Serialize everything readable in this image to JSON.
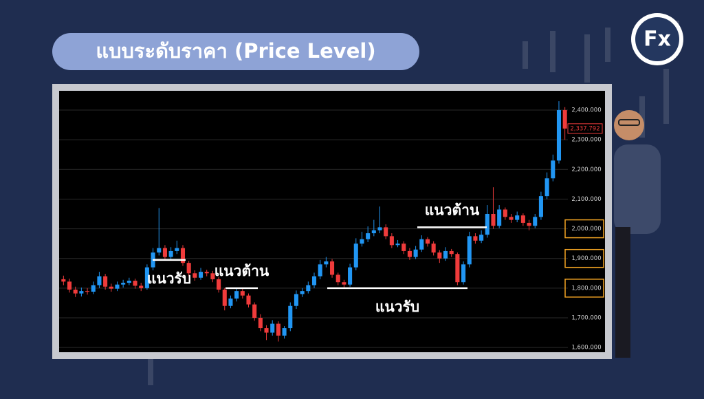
{
  "header": {
    "title": "แบบระดับราคา (Price Level)",
    "logo": "Fx"
  },
  "chart_data": {
    "type": "candlestick",
    "open": [
      1830,
      1822,
      1795,
      1782,
      1790,
      1788,
      1810,
      1840,
      1805,
      1798,
      1812,
      1818,
      1825,
      1808,
      1800,
      1870,
      1920,
      1935,
      1905,
      1925,
      1935,
      1885,
      1850,
      1835,
      1855,
      1850,
      1830,
      1795,
      1740,
      1765,
      1790,
      1775,
      1745,
      1700,
      1665,
      1650,
      1680,
      1640,
      1665,
      1740,
      1780,
      1790,
      1810,
      1840,
      1880,
      1890,
      1845,
      1820,
      1812,
      1870,
      1950,
      1965,
      1985,
      1995,
      2005,
      1975,
      1945,
      1950,
      1925,
      1905,
      1930,
      1965,
      1950,
      1920,
      1900,
      1925,
      1915,
      1820,
      1880,
      1975,
      1960,
      1980,
      2050,
      2010,
      2065,
      2040,
      2030,
      2045,
      2020,
      2010,
      2040,
      2110,
      2170,
      2230,
      2400
    ],
    "high": [
      1842,
      1832,
      1805,
      1802,
      1800,
      1822,
      1855,
      1848,
      1815,
      1822,
      1828,
      1835,
      1832,
      1818,
      1880,
      1935,
      2070,
      1945,
      1938,
      1960,
      1945,
      1892,
      1860,
      1868,
      1862,
      1858,
      1838,
      1800,
      1775,
      1802,
      1798,
      1782,
      1752,
      1712,
      1675,
      1692,
      1688,
      1672,
      1752,
      1792,
      1800,
      1822,
      1852,
      1895,
      1905,
      1898,
      1852,
      1828,
      1882,
      1968,
      1990,
      2008,
      2030,
      2075,
      2015,
      1985,
      1962,
      1958,
      1935,
      1942,
      1978,
      1972,
      1958,
      1928,
      1938,
      1932,
      1920,
      1890,
      1990,
      1985,
      1995,
      2080,
      2140,
      2080,
      2072,
      2050,
      2058,
      2052,
      2030,
      2050,
      2125,
      2190,
      2250,
      2430,
      2410
    ],
    "low": [
      1810,
      1785,
      1770,
      1772,
      1778,
      1780,
      1800,
      1795,
      1788,
      1790,
      1802,
      1810,
      1798,
      1790,
      1795,
      1860,
      1910,
      1895,
      1898,
      1915,
      1875,
      1840,
      1825,
      1828,
      1840,
      1820,
      1785,
      1725,
      1732,
      1755,
      1765,
      1735,
      1690,
      1655,
      1625,
      1640,
      1620,
      1630,
      1655,
      1730,
      1770,
      1782,
      1800,
      1830,
      1870,
      1835,
      1810,
      1800,
      1805,
      1860,
      1940,
      1955,
      1975,
      1985,
      1965,
      1935,
      1938,
      1915,
      1895,
      1898,
      1922,
      1940,
      1910,
      1885,
      1892,
      1905,
      1810,
      1812,
      1870,
      1950,
      1952,
      1970,
      2000,
      2002,
      2030,
      2020,
      2022,
      2010,
      1995,
      2002,
      2030,
      2100,
      2160,
      2220,
      2300
    ],
    "close": [
      1822,
      1795,
      1782,
      1790,
      1788,
      1810,
      1840,
      1805,
      1798,
      1812,
      1818,
      1825,
      1808,
      1800,
      1870,
      1920,
      1935,
      1905,
      1925,
      1935,
      1885,
      1850,
      1835,
      1855,
      1850,
      1830,
      1795,
      1740,
      1765,
      1790,
      1775,
      1745,
      1700,
      1665,
      1650,
      1680,
      1640,
      1665,
      1740,
      1780,
      1790,
      1810,
      1840,
      1880,
      1890,
      1845,
      1820,
      1812,
      1870,
      1950,
      1965,
      1985,
      1995,
      2005,
      1975,
      1945,
      1950,
      1925,
      1905,
      1930,
      1965,
      1950,
      1920,
      1900,
      1925,
      1915,
      1820,
      1880,
      1975,
      1960,
      1980,
      2050,
      2010,
      2065,
      2040,
      2030,
      2045,
      2020,
      2010,
      2040,
      2110,
      2170,
      2230,
      2400,
      2337.792
    ],
    "last_label": "2,337.792",
    "up_color": "#2196f3",
    "down_color": "#ef3b3b",
    "ylim": [
      1584,
      2465
    ],
    "yticks": [
      {
        "value": 1600,
        "label": "1,600.000"
      },
      {
        "value": 1700,
        "label": "1,700.000"
      },
      {
        "value": 1800,
        "label": "1,800.000",
        "highlight": true
      },
      {
        "value": 1900,
        "label": "1,900.000",
        "highlight": true
      },
      {
        "value": 2000,
        "label": "2,000.000",
        "highlight": true
      },
      {
        "value": 2100,
        "label": "2,100.000"
      },
      {
        "value": 2200,
        "label": "2,200.000"
      },
      {
        "value": 2300,
        "label": "2,300.000"
      },
      {
        "value": 2400,
        "label": "2,400.000"
      }
    ],
    "grid": true,
    "levels": [
      {
        "value": 1895,
        "label": "แนวรับ"
      },
      {
        "value": 1800,
        "label": "แนวต้าน"
      },
      {
        "value": 1800,
        "label": "แนวรับ"
      },
      {
        "value": 2005,
        "label": "แนวต้าน"
      }
    ]
  }
}
